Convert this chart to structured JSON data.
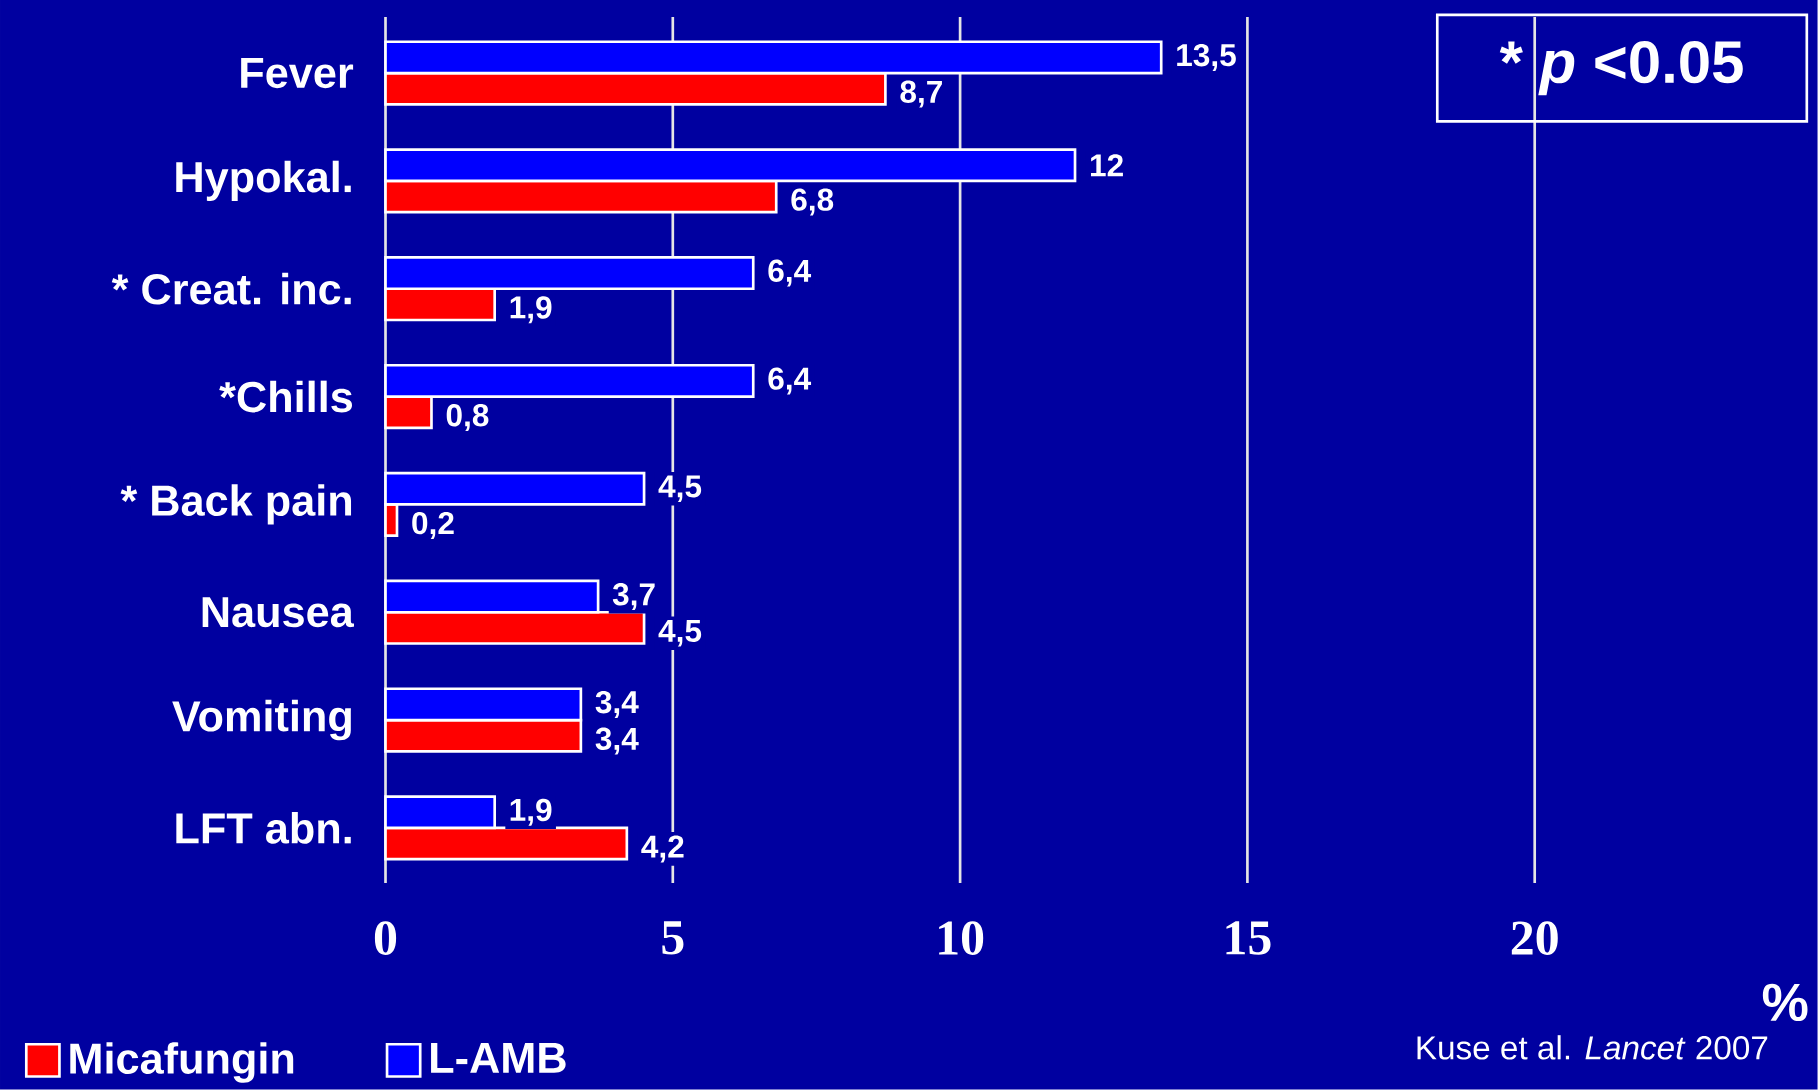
{
  "chart_data": {
    "type": "bar",
    "orientation": "horizontal",
    "categories": [
      "Fever",
      "Hypokal.",
      "* Creat. inc.",
      "*Chills",
      "* Back pain",
      "Nausea",
      "Vomiting",
      "LFT abn."
    ],
    "series": [
      {
        "name": "Micafungin",
        "color": "#ff0000",
        "values": [
          8.7,
          6.8,
          1.9,
          0.8,
          0.2,
          4.5,
          3.4,
          4.2
        ],
        "value_labels": [
          "8,7",
          "6,8",
          "1,9",
          "0,8",
          "0,2",
          "4,5",
          "3,4",
          "4,2"
        ]
      },
      {
        "name": "L-AMB",
        "color": "#0000ff",
        "values": [
          13.5,
          12,
          6.4,
          6.4,
          4.5,
          3.7,
          3.4,
          1.9
        ],
        "value_labels": [
          "13,5",
          "12",
          "6,4",
          "6,4",
          "4,5",
          "3,7",
          "3,4",
          "1,9"
        ]
      }
    ],
    "xlim": [
      0,
      20
    ],
    "xticks": [
      0,
      5,
      10,
      15,
      20
    ],
    "xlabel": "%",
    "grid": "x",
    "legend": "bottom left",
    "annotations": [
      "* *p* <0.05",
      "Kuse et al. *Lancet* 2007"
    ]
  }
}
